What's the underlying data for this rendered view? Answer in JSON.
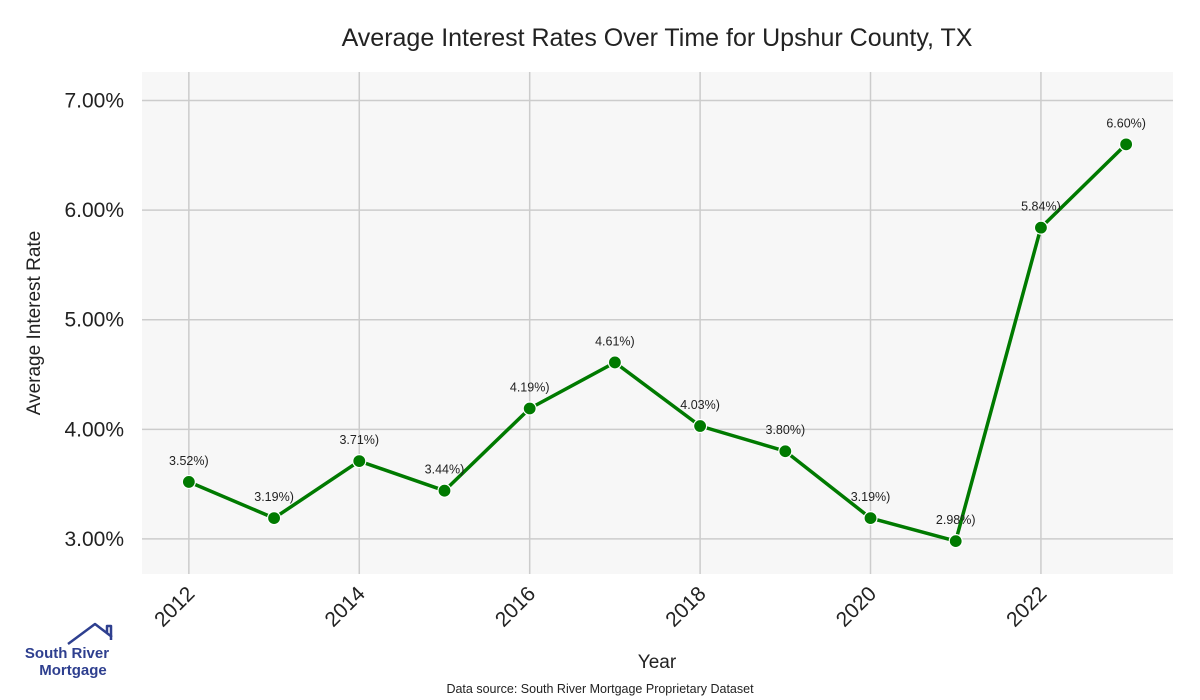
{
  "chart_data": {
    "type": "line",
    "title": "Average Interest Rates Over Time for Upshur County, TX",
    "xlabel": "Year",
    "ylabel": "Average Interest Rate",
    "x": [
      2012,
      2013,
      2014,
      2015,
      2016,
      2017,
      2018,
      2019,
      2020,
      2021,
      2022,
      2023
    ],
    "values": [
      3.52,
      3.19,
      3.71,
      3.44,
      4.19,
      4.61,
      4.03,
      3.8,
      3.19,
      2.98,
      5.84,
      6.6
    ],
    "data_labels": [
      "3.52%)",
      "3.19%)",
      "3.71%)",
      "3.44%)",
      "4.19%)",
      "4.61%)",
      "4.03%)",
      "3.80%)",
      "3.19%)",
      "2.98%)",
      "5.84%)",
      "6.60%)"
    ],
    "x_ticks": [
      2012,
      2014,
      2016,
      2018,
      2020,
      2022
    ],
    "y_ticks": [
      3,
      4,
      5,
      6,
      7
    ],
    "y_tick_labels": [
      "3.00%",
      "4.00%",
      "5.00%",
      "6.00%",
      "7.00%"
    ],
    "xlim": [
      2011.45,
      2023.55
    ],
    "ylim": [
      2.68,
      7.26
    ],
    "grid": true,
    "colors": {
      "line": "#007a00",
      "plot_background": "#f7f7f7",
      "grid": "#cccccc"
    }
  },
  "footer": {
    "source": "Data source: South River Mortgage Proprietary Dataset"
  },
  "logo": {
    "line1": "South River",
    "line2": "Mortgage",
    "icon": "house-roof-icon",
    "color": "#2e3f8f"
  }
}
